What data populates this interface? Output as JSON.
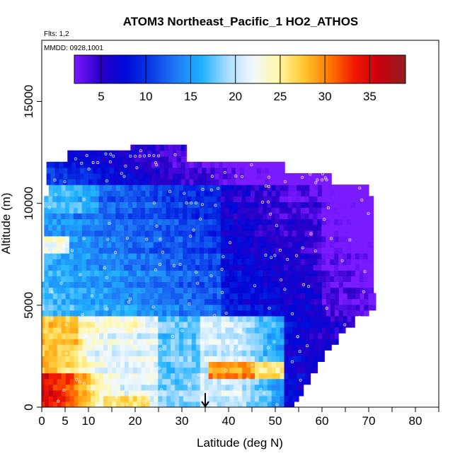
{
  "chart_data": {
    "type": "heatmap",
    "title": "ATOM3 Northeast_Pacific_1 HO2_ATHOS",
    "flights_label": "Flts: 1,2",
    "dates_label": "MMDD: 0928,1001",
    "xlabel": "Latitude (deg N)",
    "ylabel": "Altitude (m)",
    "xlim": [
      0,
      85
    ],
    "ylim": [
      0,
      18000
    ],
    "x_ticks": [
      0,
      5,
      10,
      20,
      30,
      40,
      50,
      60,
      70,
      80
    ],
    "x_minor_ticks": [
      15,
      25,
      35,
      45,
      55,
      65,
      75,
      85
    ],
    "y_ticks": [
      0,
      5000,
      10000,
      15000
    ],
    "colorbar": {
      "range": [
        2,
        39
      ],
      "ticks": [
        5,
        10,
        15,
        20,
        25,
        30,
        35
      ],
      "colors": [
        "#7a1aff",
        "#2a00c8",
        "#0008d8",
        "#0a3ae8",
        "#1f7af5",
        "#1fb2ff",
        "#a8dcff",
        "#f2f9ff",
        "#fff8a8",
        "#ffc830",
        "#ff7a00",
        "#f01800",
        "#c80010",
        "#922020"
      ]
    },
    "marker_latitude": 35,
    "grid": false,
    "legend_position": "top (colorbar)",
    "data_summary": {
      "latitude_range": [
        -0.5,
        72
      ],
      "altitude_range": [
        0,
        12900
      ],
      "regions": [
        {
          "lat": [
            0,
            8
          ],
          "alt": [
            0,
            1500
          ],
          "value": 35
        },
        {
          "lat": [
            0,
            10
          ],
          "alt": [
            1500,
            4500
          ],
          "value": 27
        },
        {
          "lat": [
            10,
            25
          ],
          "alt": [
            1500,
            4500
          ],
          "value": 22
        },
        {
          "lat": [
            0,
            35
          ],
          "alt": [
            4500,
            12000
          ],
          "value": 14
        },
        {
          "lat": [
            25,
            40
          ],
          "alt": [
            0,
            4000
          ],
          "value": 19
        },
        {
          "lat": [
            40,
            55
          ],
          "alt": [
            1000,
            4000
          ],
          "value": 21
        },
        {
          "lat": [
            36,
            45
          ],
          "alt": [
            1500,
            2000
          ],
          "value": 29
        },
        {
          "lat": [
            40,
            72
          ],
          "alt": [
            4500,
            11000
          ],
          "value": 7
        },
        {
          "lat": [
            18,
            30
          ],
          "alt": [
            11000,
            12900
          ],
          "value": 6
        }
      ]
    }
  }
}
